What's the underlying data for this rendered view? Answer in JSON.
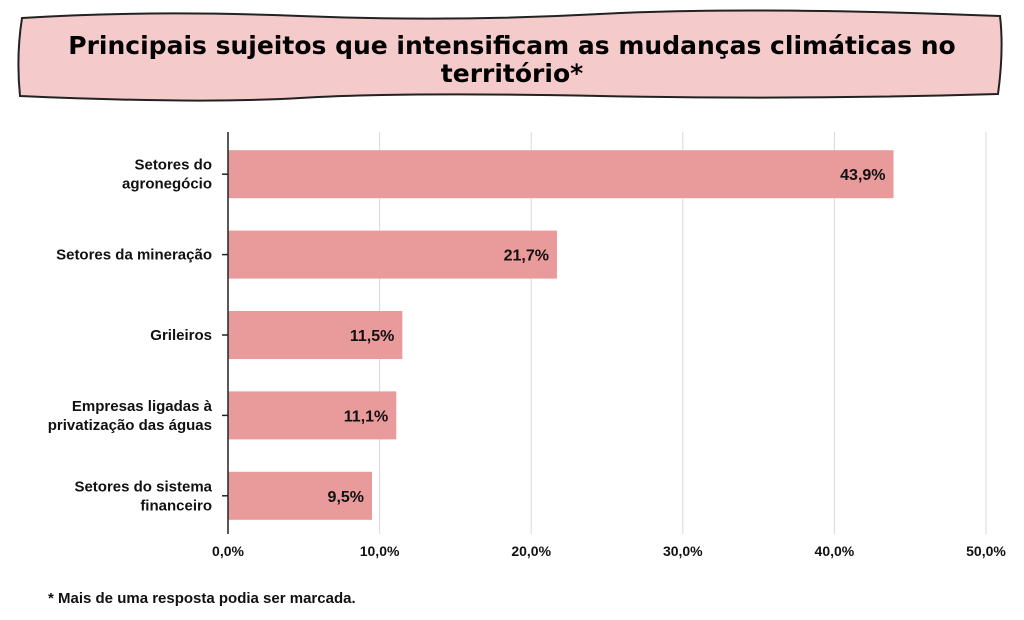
{
  "colors": {
    "banner_fill": "#f4caca",
    "banner_stroke": "#222222",
    "bar_fill": "#e99a9a",
    "grid": "#d9d9d9",
    "axis": "#222222"
  },
  "footnote": "* Mais de uma resposta podia ser marcada.",
  "chart_data": {
    "type": "bar",
    "orientation": "horizontal",
    "title": "Principais sujeitos que intensificam as mudanças climáticas no território*",
    "title_lines": [
      "Principais sujeitos que intensificam as mudanças climáticas no",
      "território*"
    ],
    "categories": [
      [
        "Setores do",
        "agronegócio"
      ],
      [
        "Setores da mineração"
      ],
      [
        "Grileiros"
      ],
      [
        "Empresas ligadas à",
        "privatização das águas"
      ],
      [
        "Setores do sistema",
        "financeiro"
      ]
    ],
    "values": [
      43.9,
      21.7,
      11.5,
      11.1,
      9.5
    ],
    "data_labels": [
      "43,9%",
      "21,7%",
      "11,5%",
      "11,1%",
      "9,5%"
    ],
    "xlim": [
      0,
      50
    ],
    "x_ticks": [
      0,
      10,
      20,
      30,
      40,
      50
    ],
    "x_tick_labels": [
      "0,0%",
      "10,0%",
      "20,0%",
      "30,0%",
      "40,0%",
      "50,0%"
    ],
    "grid": true,
    "xlabel": "",
    "ylabel": ""
  }
}
